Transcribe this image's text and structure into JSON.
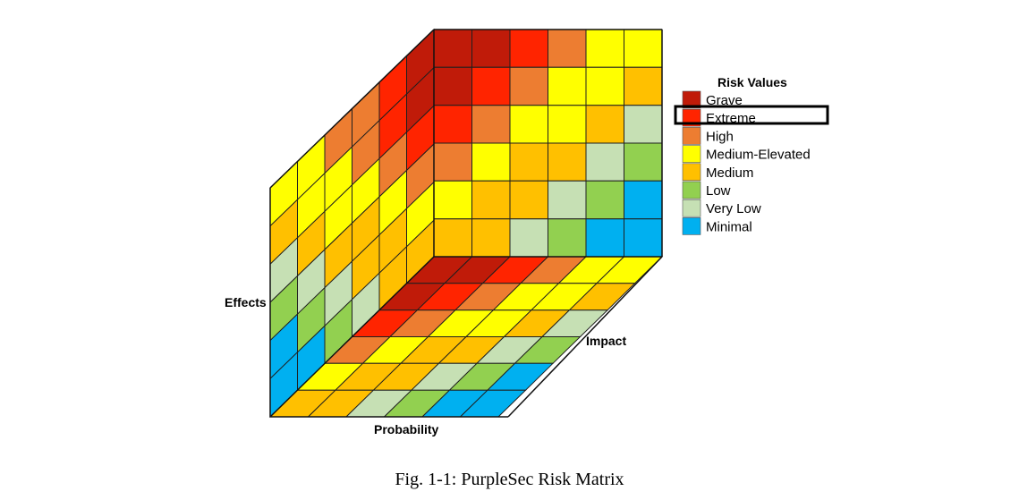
{
  "figure": {
    "caption": "Fig. 1-1: PurpleSec Risk Matrix",
    "axis_labels": {
      "effects": "Effects",
      "probability": "Probability",
      "impact": "Impact"
    }
  },
  "legend": {
    "title": "Risk Values",
    "highlighted": "Extreme",
    "items": [
      {
        "label": "Grave",
        "color": "#C01B09"
      },
      {
        "label": "Extreme",
        "color": "#FF2400"
      },
      {
        "label": "High",
        "color": "#ED7D31"
      },
      {
        "label": "Medium-Elevated",
        "color": "#FFFF00"
      },
      {
        "label": "Medium",
        "color": "#FFC000"
      },
      {
        "label": "Low",
        "color": "#92D050"
      },
      {
        "label": "Very Low",
        "color": "#C6E0B4"
      },
      {
        "label": "Minimal",
        "color": "#00B0F0"
      }
    ]
  },
  "grids": {
    "back": [
      [
        "Grave",
        "Grave",
        "Extreme",
        "High",
        "Medium-Elevated",
        "Medium-Elevated"
      ],
      [
        "Grave",
        "Extreme",
        "High",
        "Medium-Elevated",
        "Medium-Elevated",
        "Medium"
      ],
      [
        "Extreme",
        "High",
        "Medium-Elevated",
        "Medium-Elevated",
        "Medium",
        "Very Low"
      ],
      [
        "High",
        "Medium-Elevated",
        "Medium",
        "Medium",
        "Very Low",
        "Low"
      ],
      [
        "Medium-Elevated",
        "Medium",
        "Medium",
        "Very Low",
        "Low",
        "Minimal"
      ],
      [
        "Medium",
        "Medium",
        "Very Low",
        "Low",
        "Minimal",
        "Minimal"
      ]
    ],
    "left": [
      [
        "Medium-Elevated",
        "Medium-Elevated",
        "High",
        "High",
        "Extreme",
        "Grave"
      ],
      [
        "Medium",
        "Medium-Elevated",
        "Medium-Elevated",
        "High",
        "Extreme",
        "Grave"
      ],
      [
        "Very Low",
        "Medium",
        "Medium-Elevated",
        "Medium-Elevated",
        "High",
        "Extreme"
      ],
      [
        "Low",
        "Very Low",
        "Medium",
        "Medium",
        "Medium-Elevated",
        "High"
      ],
      [
        "Minimal",
        "Low",
        "Very Low",
        "Medium",
        "Medium",
        "Medium-Elevated"
      ],
      [
        "Minimal",
        "Minimal",
        "Low",
        "Very Low",
        "Medium",
        "Medium"
      ]
    ],
    "floor": [
      [
        "Grave",
        "Grave",
        "Extreme",
        "High",
        "Medium-Elevated",
        "Medium-Elevated"
      ],
      [
        "Grave",
        "Extreme",
        "High",
        "Medium-Elevated",
        "Medium-Elevated",
        "Medium"
      ],
      [
        "Extreme",
        "High",
        "Medium-Elevated",
        "Medium-Elevated",
        "Medium",
        "Very Low"
      ],
      [
        "High",
        "Medium-Elevated",
        "Medium",
        "Medium",
        "Very Low",
        "Low"
      ],
      [
        "Medium-Elevated",
        "Medium",
        "Medium",
        "Very Low",
        "Low",
        "Minimal"
      ],
      [
        "Medium",
        "Medium",
        "Very Low",
        "Low",
        "Minimal",
        "Minimal"
      ]
    ]
  }
}
